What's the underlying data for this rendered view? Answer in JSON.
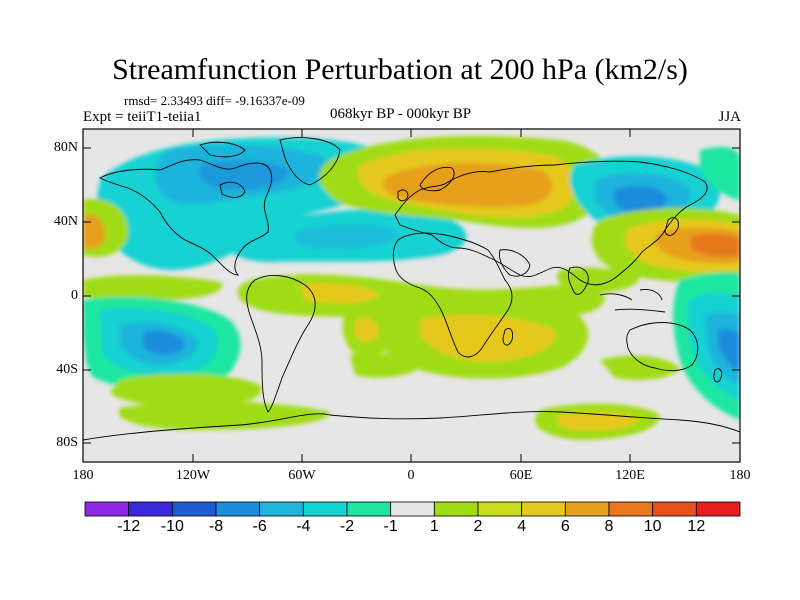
{
  "title": "Streamfunction Perturbation at 200 hPa (km2/s)",
  "rmsd_line": "rmsd= 2.33493 diff= -9.16337e-09",
  "expt_line": "Expt = teiiT1-teiia1",
  "period_line": "068kyr BP - 000kyr BP",
  "season": "JJA",
  "y_ticks": [
    "80N",
    "40N",
    "0",
    "40S",
    "80S"
  ],
  "x_ticks": [
    "180",
    "120W",
    "60W",
    "0",
    "60E",
    "120E",
    "180"
  ],
  "colorbar": {
    "labels": [
      "-12",
      "-10",
      "-8",
      "-6",
      "-4",
      "-2",
      "-1",
      "1",
      "2",
      "4",
      "6",
      "8",
      "10",
      "12"
    ],
    "colors": [
      "#8c28e6",
      "#3c28dc",
      "#1e5ad2",
      "#1e8cdc",
      "#1eb4dc",
      "#14d2d2",
      "#1ee6a0",
      "#e6e6e6",
      "#a0dc14",
      "#c8dc1e",
      "#e6c81e",
      "#e6a01e",
      "#e6781e",
      "#e6501e",
      "#e61e1e"
    ]
  },
  "colors": {
    "background": "#e6e6e6",
    "coast": "#000000"
  }
}
